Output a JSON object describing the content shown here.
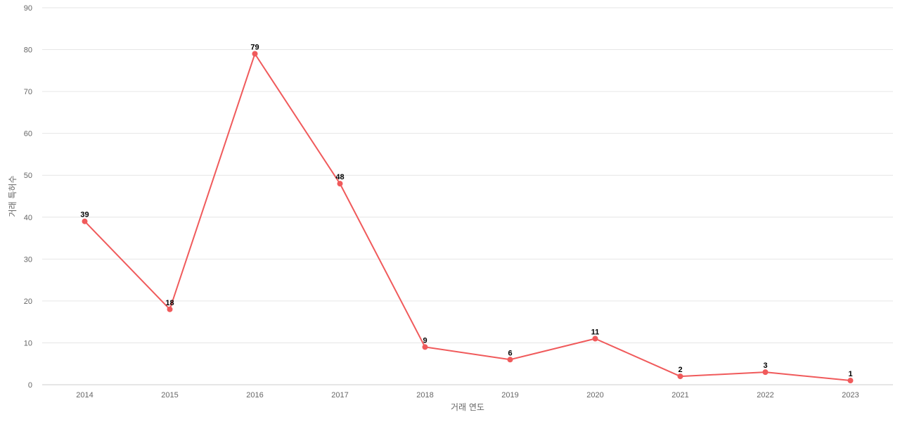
{
  "chart_data": {
    "type": "line",
    "title": "",
    "xlabel": "거래 연도",
    "ylabel": "거래 특허수",
    "categories": [
      "2014",
      "2015",
      "2016",
      "2017",
      "2018",
      "2019",
      "2020",
      "2021",
      "2022",
      "2023"
    ],
    "series": [
      {
        "values": [
          39,
          18,
          79,
          48,
          9,
          6,
          11,
          2,
          3,
          1
        ],
        "color": "#f05a5b"
      }
    ],
    "ylim": [
      0,
      90
    ],
    "yticks": [
      0,
      10,
      20,
      30,
      40,
      50,
      60,
      70,
      80,
      90
    ],
    "grid": true,
    "data_labels": true,
    "legend": "none"
  }
}
